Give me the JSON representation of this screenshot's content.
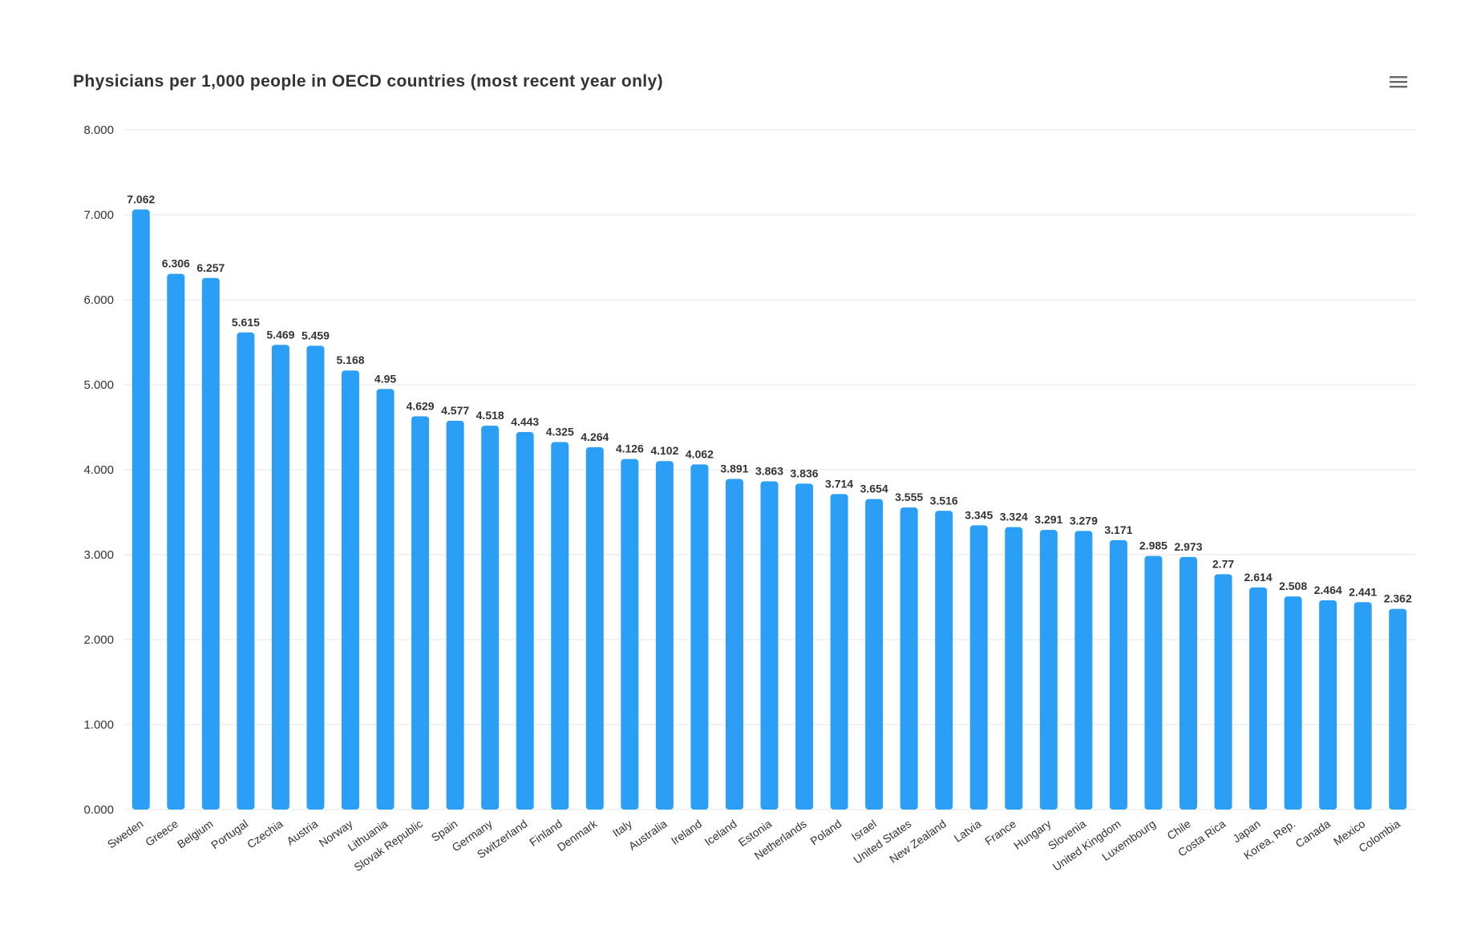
{
  "header": {
    "title": "Physicians per 1,000 people in OECD countries (most recent year only)",
    "menu_icon": "hamburger-menu-icon"
  },
  "colors": {
    "bar": "#2a9ff5",
    "grid": "#e6e6e6",
    "text": "#333333",
    "menu_icon": "#666666"
  },
  "chart_data": {
    "type": "bar",
    "title": "Physicians per 1,000 people in OECD countries (most recent year only)",
    "xlabel": "",
    "ylabel": "",
    "ylim": [
      0,
      8
    ],
    "y_ticks": [
      0,
      1,
      2,
      3,
      4,
      5,
      6,
      7,
      8
    ],
    "y_tick_labels": [
      "0.000",
      "1.000",
      "2.000",
      "3.000",
      "4.000",
      "5.000",
      "6.000",
      "7.000",
      "8.000"
    ],
    "grid": true,
    "legend": "none",
    "categories": [
      "Sweden",
      "Greece",
      "Belgium",
      "Portugal",
      "Czechia",
      "Austria",
      "Norway",
      "Lithuania",
      "Slovak Republic",
      "Spain",
      "Germany",
      "Switzerland",
      "Finland",
      "Denmark",
      "Italy",
      "Australia",
      "Ireland",
      "Iceland",
      "Estonia",
      "Netherlands",
      "Poland",
      "Israel",
      "United States",
      "New Zealand",
      "Latvia",
      "France",
      "Hungary",
      "Slovenia",
      "United Kingdom",
      "Luxembourg",
      "Chile",
      "Costa Rica",
      "Japan",
      "Korea, Rep.",
      "Canada",
      "Mexico",
      "Colombia"
    ],
    "values": [
      7.062,
      6.306,
      6.257,
      5.615,
      5.469,
      5.459,
      5.168,
      4.95,
      4.629,
      4.577,
      4.518,
      4.443,
      4.325,
      4.264,
      4.126,
      4.102,
      4.062,
      3.891,
      3.863,
      3.836,
      3.714,
      3.654,
      3.555,
      3.516,
      3.345,
      3.324,
      3.291,
      3.279,
      3.171,
      2.985,
      2.973,
      2.77,
      2.614,
      2.508,
      2.464,
      2.441,
      2.362
    ],
    "value_labels": [
      "7.062",
      "6.306",
      "6.257",
      "5.615",
      "5.469",
      "5.459",
      "5.168",
      "4.95",
      "4.629",
      "4.577",
      "4.518",
      "4.443",
      "4.325",
      "4.264",
      "4.126",
      "4.102",
      "4.062",
      "3.891",
      "3.863",
      "3.836",
      "3.714",
      "3.654",
      "3.555",
      "3.516",
      "3.345",
      "3.324",
      "3.291",
      "3.279",
      "3.171",
      "2.985",
      "2.973",
      "2.77",
      "2.614",
      "2.508",
      "2.464",
      "2.441",
      "2.362"
    ]
  }
}
